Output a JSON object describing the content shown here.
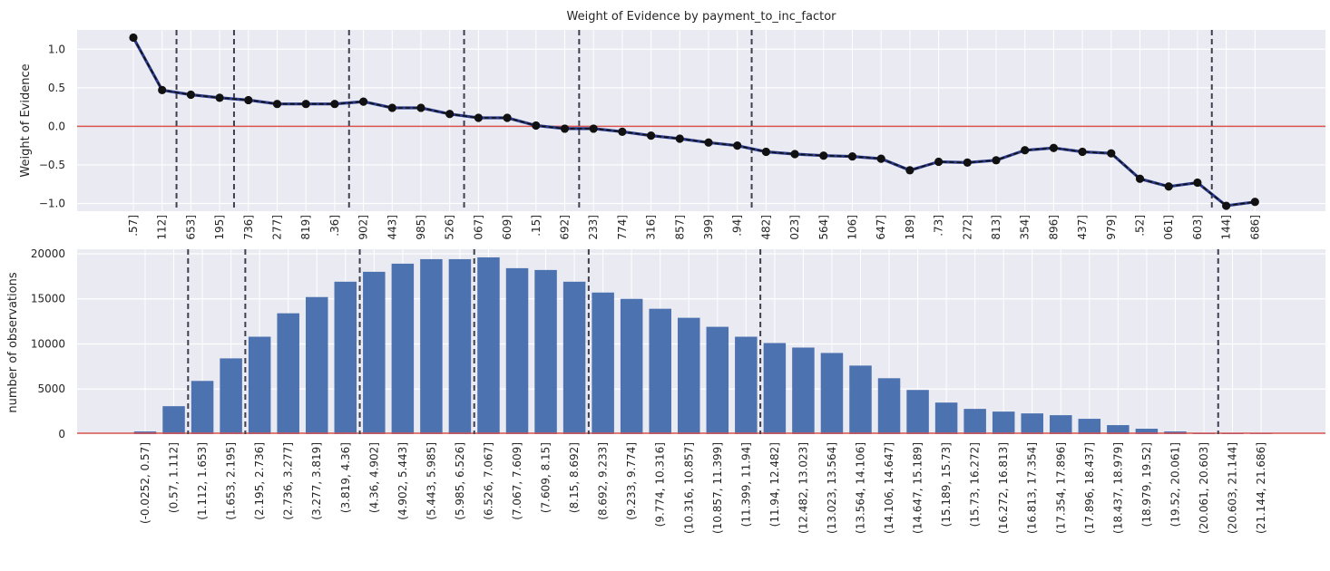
{
  "chart_data": [
    {
      "type": "line",
      "title": "Weight of Evidence by payment_to_inc_factor",
      "xlabel": "",
      "ylabel": "Weight of Evidence",
      "ylim": [
        -1.1,
        1.25
      ],
      "yticks": [
        1.0,
        0.5,
        0.0,
        -0.5,
        -1.0
      ],
      "ytick_labels": [
        "1.0",
        "0.5",
        "0.0",
        "−0.5",
        "−1.0"
      ],
      "grid": true,
      "reference_line": 0.0,
      "reference_line_color": "#d9534f",
      "line_color": "#2c3e50",
      "marker_color": "#111111",
      "categories": [
        "(-0.0252, 0.57]",
        "(0.57, 1.112]",
        "(1.112, 1.653]",
        "(1.653, 2.195]",
        "(2.195, 2.736]",
        "(2.736, 3.277]",
        "(3.277, 3.819]",
        "(3.819, 4.36]",
        "(4.36, 4.902]",
        "(4.902, 5.443]",
        "(5.443, 5.985]",
        "(5.985, 6.526]",
        "(6.526, 7.067]",
        "(7.067, 7.609]",
        "(7.609, 8.15]",
        "(8.15, 8.692]",
        "(8.692, 9.233]",
        "(9.233, 9.774]",
        "(9.774, 10.316]",
        "(10.316, 10.857]",
        "(10.857, 11.399]",
        "(11.399, 11.94]",
        "(11.94, 12.482]",
        "(12.482, 13.023]",
        "(13.023, 13.564]",
        "(13.564, 14.106]",
        "(14.106, 14.647]",
        "(14.647, 15.189]",
        "(15.189, 15.73]",
        "(15.73, 16.272]",
        "(16.272, 16.813]",
        "(16.813, 17.354]",
        "(17.354, 17.896]",
        "(17.896, 18.437]",
        "(18.437, 18.979]",
        "(18.979, 19.52]",
        "(19.52, 20.061]",
        "(20.061, 20.603]",
        "(20.603, 21.144]",
        "(21.144, 21.686]"
      ],
      "tick_labels": [
        ".57]",
        "112]",
        "653]",
        "195]",
        "736]",
        "277]",
        "819]",
        ".36]",
        "902]",
        "443]",
        "985]",
        "526]",
        "067]",
        "609]",
        ".15]",
        "692]",
        "233]",
        "774]",
        "316]",
        "857]",
        "399]",
        ".94]",
        "482]",
        "023]",
        "564]",
        "106]",
        "647]",
        "189]",
        ".73]",
        "272]",
        "813]",
        "354]",
        "896]",
        "437]",
        "979]",
        ".52]",
        "061]",
        "603]",
        "144]",
        "686]"
      ],
      "values": [
        1.15,
        0.47,
        0.41,
        0.37,
        0.34,
        0.29,
        0.29,
        0.29,
        0.32,
        0.24,
        0.24,
        0.16,
        0.11,
        0.11,
        0.01,
        -0.03,
        -0.03,
        -0.07,
        -0.12,
        -0.16,
        -0.21,
        -0.25,
        -0.33,
        -0.36,
        -0.38,
        -0.39,
        -0.42,
        -0.57,
        -0.46,
        -0.47,
        -0.44,
        -0.31,
        -0.28,
        -0.33,
        -0.35,
        -0.68,
        -0.78,
        -0.73,
        -1.03,
        -0.98
      ],
      "vlines_after_index": [
        1,
        3,
        7,
        11,
        15,
        21,
        37
      ]
    },
    {
      "type": "bar",
      "title": "",
      "xlabel": "",
      "ylabel": "number of observations",
      "ylim": [
        0,
        20500
      ],
      "yticks": [
        0,
        5000,
        10000,
        15000,
        20000
      ],
      "grid": true,
      "bar_color": "#4c72b0",
      "baseline_color": "#d9534f",
      "categories": [
        "(-0.0252, 0.57]",
        "(0.57, 1.112]",
        "(1.112, 1.653]",
        "(1.653, 2.195]",
        "(2.195, 2.736]",
        "(2.736, 3.277]",
        "(3.277, 3.819]",
        "(3.819, 4.36]",
        "(4.36, 4.902]",
        "(4.902, 5.443]",
        "(5.443, 5.985]",
        "(5.985, 6.526]",
        "(6.526, 7.067]",
        "(7.067, 7.609]",
        "(7.609, 8.15]",
        "(8.15, 8.692]",
        "(8.692, 9.233]",
        "(9.233, 9.774]",
        "(9.774, 10.316]",
        "(10.316, 10.857]",
        "(10.857, 11.399]",
        "(11.399, 11.94]",
        "(11.94, 12.482]",
        "(12.482, 13.023]",
        "(13.023, 13.564]",
        "(13.564, 14.106]",
        "(14.106, 14.647]",
        "(14.647, 15.189]",
        "(15.189, 15.73]",
        "(15.73, 16.272]",
        "(16.272, 16.813]",
        "(16.813, 17.354]",
        "(17.354, 17.896]",
        "(17.896, 18.437]",
        "(18.437, 18.979]",
        "(18.979, 19.52]",
        "(19.52, 20.061]",
        "(20.061, 20.603]",
        "(20.603, 21.144]",
        "(21.144, 21.686]"
      ],
      "values": [
        300,
        3100,
        5900,
        8400,
        10800,
        13400,
        15200,
        16900,
        18000,
        18900,
        19400,
        19400,
        19600,
        18400,
        18200,
        16900,
        15700,
        15000,
        13900,
        12900,
        11900,
        10800,
        10100,
        9600,
        9000,
        7600,
        6200,
        4900,
        3500,
        2800,
        2500,
        2300,
        2100,
        1700,
        1000,
        600,
        300,
        150,
        60,
        40
      ],
      "vlines_after_index": [
        1,
        3,
        7,
        11,
        15,
        21,
        37
      ]
    }
  ]
}
